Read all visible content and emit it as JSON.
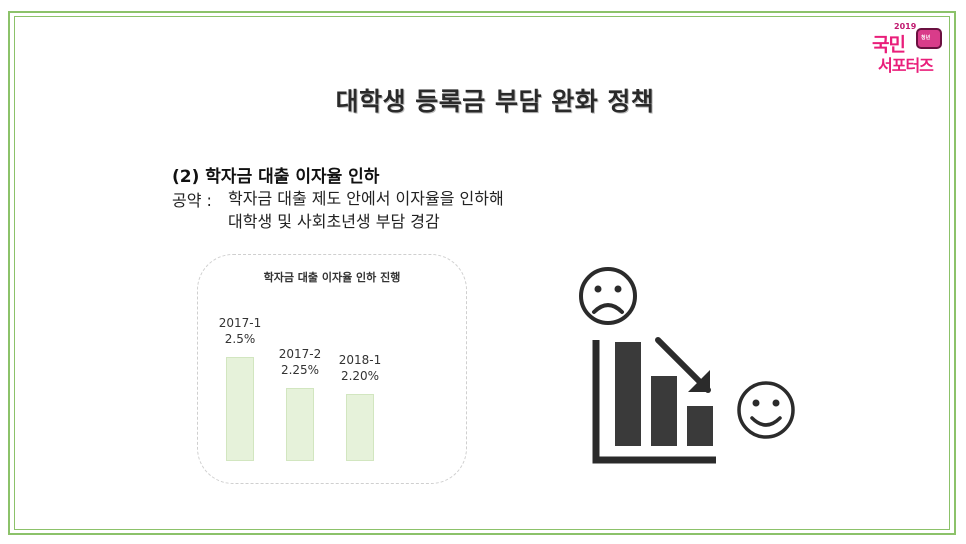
{
  "logo": {
    "year": "2019",
    "line1": "국민",
    "line2": "서포터즈",
    "badge": "청년"
  },
  "title": "대학생 등록금 부담 완화 정책",
  "subhead": "(2) 학자금 대출 이자율 인하",
  "pledge_label": "공약 :",
  "pledge_lines": [
    "학자금 대출 제도 안에서 이자율을 인하해",
    "대학생 및 사회초년생 부담 경감"
  ],
  "colors": {
    "frame": "#8cc26a",
    "bar_fill": "#e6f2da",
    "logo_pink": "#e91e7a"
  },
  "icons": [
    "sad-face-icon",
    "declining-bar-chart-icon",
    "happy-face-icon"
  ],
  "chart_data": {
    "type": "bar",
    "title": "학자금 대출 이자율 인하 진행",
    "categories": [
      "2017-1",
      "2017-2",
      "2018-1"
    ],
    "values": [
      2.5,
      2.25,
      2.2
    ],
    "value_labels": [
      "2.5%",
      "2.25%",
      "2.20%"
    ],
    "xlabel": "",
    "ylabel": "",
    "grid": false
  }
}
